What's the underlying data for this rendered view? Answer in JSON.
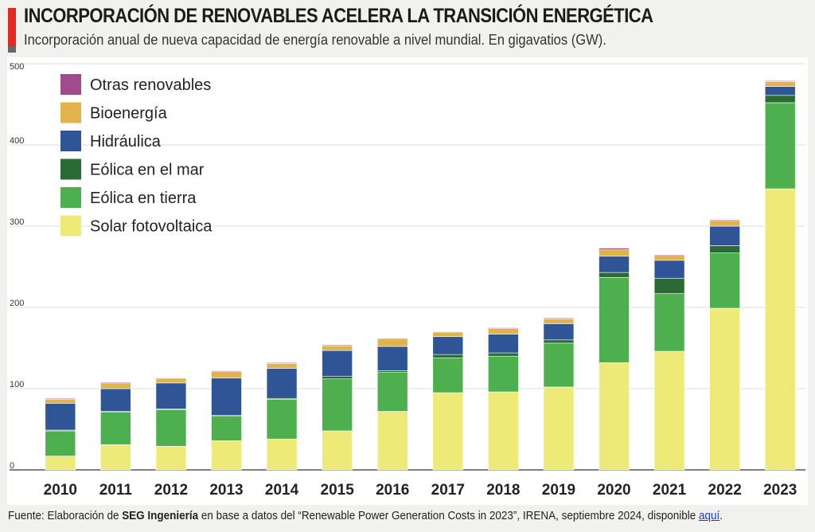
{
  "header": {
    "title": "INCORPORACIÓN DE RENOVABLES ACELERA LA TRANSICIÓN ENERGÉTICA",
    "subtitle": "Incorporación anual de nueva capacidad de energía renovable a nivel mundial. En gigavatios (GW)."
  },
  "footer": {
    "prefix": "Fuente: Elaboración de ",
    "org": "SEG Ingeniería",
    "middle": " en base a datos del “Renewable Power Generation Costs in 2023”, IRENA, septiembre 2024, disponible ",
    "link": "aquí",
    "suffix": "."
  },
  "colors": {
    "solar": "#eeea78",
    "onshore": "#4daf4e",
    "offshore": "#2a6b35",
    "hydro": "#2f5597",
    "bio": "#e0b44b",
    "other": "#a04b8e"
  },
  "chart_data": {
    "type": "bar",
    "stacked": true,
    "title": "",
    "xlabel": "",
    "ylabel": "",
    "ylim": [
      0,
      500
    ],
    "yticks": [
      0,
      100,
      200,
      300,
      400,
      500
    ],
    "grid": true,
    "legend_position": "top-left",
    "categories": [
      "2010",
      "2011",
      "2012",
      "2013",
      "2014",
      "2015",
      "2016",
      "2017",
      "2018",
      "2019",
      "2020",
      "2021",
      "2022",
      "2023"
    ],
    "series": [
      {
        "name": "Solar fotovoltaica",
        "color_key": "solar",
        "values": [
          17,
          31,
          29,
          36,
          38,
          48,
          72,
          95,
          96,
          102,
          132,
          146,
          199,
          346
        ]
      },
      {
        "name": "Eólica en tierra",
        "color_key": "onshore",
        "values": [
          31,
          40,
          45,
          30,
          49,
          64,
          48,
          43,
          44,
          54,
          105,
          71,
          68,
          106
        ]
      },
      {
        "name": "Eólica en el mar",
        "color_key": "offshore",
        "values": [
          1,
          1,
          1,
          1,
          1,
          3,
          2,
          4,
          4,
          4,
          6,
          19,
          9,
          9
        ]
      },
      {
        "name": "Hidráulica",
        "color_key": "hydro",
        "values": [
          33,
          28,
          32,
          46,
          37,
          32,
          30,
          22,
          23,
          20,
          20,
          22,
          24,
          11
        ]
      },
      {
        "name": "Bioenergía",
        "color_key": "bio",
        "values": [
          5,
          7,
          5,
          8,
          6,
          6,
          9,
          5,
          7,
          6,
          8,
          6,
          7,
          6
        ]
      },
      {
        "name": "Otras renovables",
        "color_key": "other",
        "values": [
          1,
          1,
          1,
          1,
          1,
          1,
          1,
          1,
          1,
          1,
          2,
          1,
          1,
          1
        ]
      }
    ],
    "legend_order": [
      "Otras renovables",
      "Bioenergía",
      "Hidráulica",
      "Eólica en el mar",
      "Eólica en tierra",
      "Solar fotovoltaica"
    ]
  }
}
